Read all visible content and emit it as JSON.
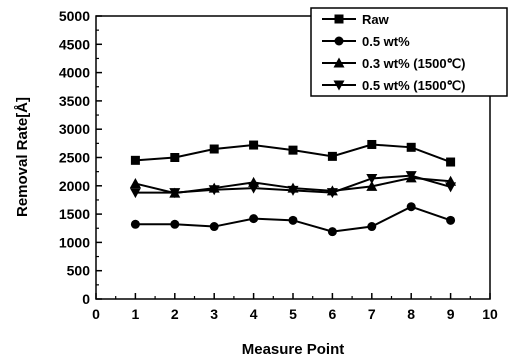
{
  "chart_data": {
    "type": "line",
    "xlabel": "Measure Point",
    "ylabel": "Removal Rate[Å]",
    "xlim": [
      0,
      10
    ],
    "ylim": [
      0,
      5000
    ],
    "x_ticks": [
      "0",
      "1",
      "2",
      "3",
      "4",
      "5",
      "6",
      "7",
      "8",
      "9",
      "10"
    ],
    "y_ticks": [
      "0",
      "500",
      "1000",
      "1500",
      "2000",
      "2500",
      "3000",
      "3500",
      "4000",
      "4500",
      "5000"
    ],
    "x": [
      1,
      2,
      3,
      4,
      5,
      6,
      7,
      8,
      9
    ],
    "grid": false,
    "legend_position": "top-right",
    "series": [
      {
        "name": "Raw",
        "marker": "square",
        "values": [
          2450,
          2500,
          2650,
          2720,
          2630,
          2520,
          2730,
          2680,
          2420
        ]
      },
      {
        "name": "0.5 wt%",
        "marker": "circle",
        "values": [
          1320,
          1320,
          1280,
          1420,
          1390,
          1190,
          1280,
          1630,
          1390
        ]
      },
      {
        "name": "0.3 wt% (1500℃)",
        "marker": "triangle-up",
        "values": [
          2040,
          1870,
          1960,
          2060,
          1960,
          1910,
          1990,
          2140,
          2080
        ]
      },
      {
        "name": "0.5 wt% (1500℃)",
        "marker": "triangle-down",
        "values": [
          1880,
          1880,
          1930,
          1960,
          1920,
          1880,
          2130,
          2180,
          1980
        ]
      }
    ]
  }
}
